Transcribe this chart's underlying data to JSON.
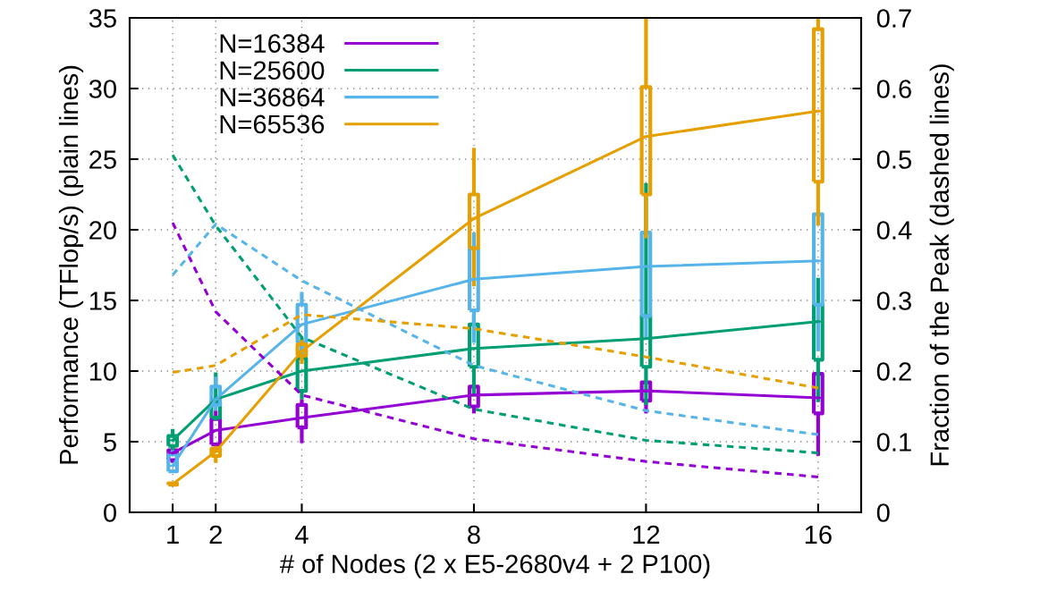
{
  "chart_data": {
    "type": "line",
    "xlabel": "# of Nodes (2 x E5-2680v4 + 2 P100)",
    "ylabel": "Performance (TFlop/s) (plain lines)",
    "y2label": "Fraction of the Peak (dashed lines)",
    "xlim": [
      0,
      17
    ],
    "xticks": [
      1,
      2,
      4,
      8,
      12,
      16
    ],
    "ylim": [
      0,
      35
    ],
    "yticks": [
      0,
      5,
      10,
      15,
      20,
      25,
      30,
      35
    ],
    "y2lim": [
      0,
      0.7
    ],
    "y2ticks": [
      0,
      0.1,
      0.2,
      0.3,
      0.4,
      0.5,
      0.6,
      0.7
    ],
    "grid": true,
    "legend": "top left",
    "marker": "none",
    "series": [
      {
        "type": "box",
        "color": "#9400d3",
        "x": [
          1,
          2,
          4,
          8,
          12,
          16
        ],
        "boxes": [
          {
            "low": 3.5,
            "q1": 3.7,
            "median": 4.2,
            "q3": 4.4,
            "high": 4.6
          },
          {
            "low": 4.4,
            "q1": 4.8,
            "median": 5.8,
            "q3": 6.6,
            "high": 7.2
          },
          {
            "low": 4.9,
            "q1": 6.0,
            "median": 6.7,
            "q3": 7.6,
            "high": 8.0
          },
          {
            "low": 7.0,
            "q1": 7.5,
            "median": 8.3,
            "q3": 8.9,
            "high": 9.0
          },
          {
            "low": 7.0,
            "q1": 7.9,
            "median": 8.6,
            "q3": 9.2,
            "high": 9.3
          },
          {
            "low": 4.0,
            "q1": 7.0,
            "median": 8.1,
            "q3": 9.8,
            "high": 9.8
          }
        ]
      },
      {
        "type": "box",
        "color": "#009e73",
        "x": [
          1,
          2,
          4,
          8,
          12,
          16
        ],
        "boxes": [
          {
            "low": 4.2,
            "q1": 4.7,
            "median": 5.1,
            "q3": 5.4,
            "high": 5.9
          },
          {
            "low": 6.5,
            "q1": 6.7,
            "median": 8.0,
            "q3": 7.8,
            "high": 9.9
          },
          {
            "low": 8.0,
            "q1": 8.6,
            "median": 10.0,
            "q3": 10.9,
            "high": 12.4
          },
          {
            "low": 8.2,
            "q1": 10.3,
            "median": 11.6,
            "q3": 13.3,
            "high": 14.0
          },
          {
            "low": 7.6,
            "q1": 10.3,
            "median": 12.3,
            "q3": 13.9,
            "high": 23.3
          },
          {
            "low": 7.8,
            "q1": 10.8,
            "median": 13.5,
            "q3": 14.7,
            "high": 16.6
          }
        ]
      },
      {
        "type": "box",
        "color": "#56b4e9",
        "x": [
          1,
          2,
          4,
          8,
          12,
          16
        ],
        "boxes": [
          {
            "low": 2.8,
            "q1": 2.9,
            "median": 3.3,
            "q3": 4.1,
            "high": 4.4
          },
          {
            "low": 7.2,
            "q1": 7.6,
            "median": 8.0,
            "q3": 8.9,
            "high": 9.6
          },
          {
            "low": 11.0,
            "q1": 12.0,
            "median": 13.3,
            "q3": 14.7,
            "high": 15.6
          },
          {
            "low": 12.0,
            "q1": 14.3,
            "median": 16.5,
            "q3": 18.7,
            "high": 19.8
          },
          {
            "low": 12.3,
            "q1": 13.9,
            "median": 17.4,
            "q3": 19.8,
            "high": 19.8
          },
          {
            "low": 11.4,
            "q1": 14.7,
            "median": 17.8,
            "q3": 21.1,
            "high": 21.1
          }
        ]
      },
      {
        "type": "box",
        "color": "#e69f00",
        "x": [
          1,
          2,
          4,
          8,
          12,
          16
        ],
        "boxes": [
          {
            "low": 1.9,
            "q1": 1.95,
            "median": 2.0,
            "q3": 2.05,
            "high": 2.1
          },
          {
            "low": 3.5,
            "q1": 4.0,
            "median": 4.3,
            "q3": 4.5,
            "high": 4.7
          },
          {
            "low": 10.5,
            "q1": 11.1,
            "median": 11.4,
            "q3": 11.9,
            "high": 12.2
          },
          {
            "low": 16.0,
            "q1": 18.7,
            "median": 20.8,
            "q3": 22.5,
            "high": 25.8
          },
          {
            "low": 19.4,
            "q1": 22.5,
            "median": 26.6,
            "q3": 30.1,
            "high": 35
          },
          {
            "low": 20.3,
            "q1": 23.4,
            "median": 28.4,
            "q3": 34.2,
            "high": 35
          }
        ]
      },
      {
        "name": "N=16384",
        "color": "#9400d3",
        "x": [
          1,
          2,
          4,
          8,
          12,
          16
        ],
        "values": [
          4.2,
          5.8,
          6.7,
          8.3,
          8.6,
          8.1
        ]
      },
      {
        "name": "N=25600",
        "color": "#009e73",
        "x": [
          1,
          2,
          4,
          8,
          12,
          16
        ],
        "values": [
          5.1,
          8.0,
          10.0,
          11.6,
          12.3,
          13.5
        ]
      },
      {
        "name": "N=36864",
        "color": "#56b4e9",
        "x": [
          1,
          2,
          4,
          8,
          12,
          16
        ],
        "values": [
          3.3,
          8.0,
          13.3,
          16.5,
          17.4,
          17.8
        ]
      },
      {
        "name": "N=65536",
        "color": "#e69f00",
        "x": [
          1,
          2,
          4,
          8,
          12,
          16
        ],
        "values": [
          2.0,
          4.3,
          11.4,
          20.8,
          26.6,
          28.4
        ]
      },
      {
        "axis": "y2",
        "line_style": "dashed",
        "color": "#9400d3",
        "x": [
          1,
          2,
          4,
          8,
          12,
          16
        ],
        "values": [
          0.41,
          0.284,
          0.166,
          0.104,
          0.072,
          0.05
        ]
      },
      {
        "axis": "y2",
        "line_style": "dashed",
        "color": "#009e73",
        "x": [
          1,
          2,
          4,
          8,
          12,
          16
        ],
        "values": [
          0.506,
          0.406,
          0.248,
          0.146,
          0.102,
          0.084
        ]
      },
      {
        "axis": "y2",
        "line_style": "dashed",
        "color": "#56b4e9",
        "x": [
          1,
          2,
          4,
          8,
          12,
          16
        ],
        "values": [
          0.336,
          0.408,
          0.328,
          0.208,
          0.144,
          0.11
        ]
      },
      {
        "axis": "y2",
        "line_style": "dashed",
        "color": "#e69f00",
        "x": [
          1,
          2,
          4,
          8,
          12,
          16
        ],
        "values": [
          0.198,
          0.208,
          0.28,
          0.26,
          0.22,
          0.176
        ]
      }
    ]
  }
}
